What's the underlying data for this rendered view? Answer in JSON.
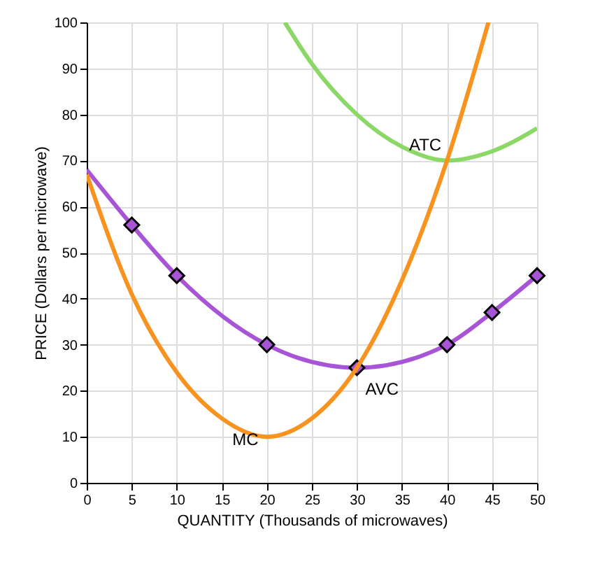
{
  "chart_data": {
    "type": "line",
    "xlabel": "QUANTITY (Thousands of microwaves)",
    "ylabel": "PRICE (Dollars per microwave)",
    "xlim": [
      0,
      50
    ],
    "xticks": [
      0,
      5,
      10,
      15,
      20,
      25,
      30,
      35,
      40,
      45,
      50
    ],
    "ylim": [
      0,
      100
    ],
    "yticks": [
      0,
      10,
      20,
      30,
      40,
      50,
      60,
      70,
      80,
      90,
      100
    ],
    "grid": true,
    "series": [
      {
        "name": "ATC",
        "color": "#8cd867",
        "x": [
          22,
          25,
          30,
          35,
          40,
          45,
          50
        ],
        "values": [
          100,
          91,
          80,
          73,
          70,
          72,
          77
        ]
      },
      {
        "name": "AVC",
        "color": "#a755d6",
        "marker": "diamond",
        "x": [
          0,
          5,
          10,
          20,
          30,
          40,
          45,
          50
        ],
        "values": [
          68,
          56,
          45,
          30,
          25,
          30,
          37,
          45
        ]
      },
      {
        "name": "MC",
        "color": "#f7931e",
        "x": [
          0,
          5,
          10,
          15,
          20,
          25,
          30,
          35,
          40,
          44.6
        ],
        "values": [
          67,
          41,
          24,
          14,
          10,
          14,
          25,
          44,
          70,
          100
        ]
      }
    ]
  }
}
